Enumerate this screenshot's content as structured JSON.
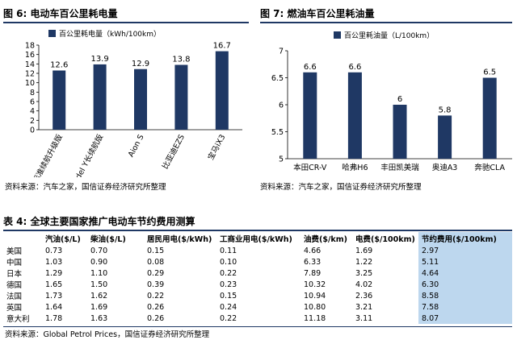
{
  "fig6": {
    "title": "图 6:  电动车百公里耗电量",
    "legend": "百公里耗电量（kWh/100km）",
    "source": "资料来源：汽车之家，国信证券经济研究所整理"
  },
  "fig7": {
    "title": "图 7:  燃油车百公里耗油量",
    "legend": "百公里耗油量（L/100km）",
    "source": "资料来源：汽车之家，国信证券经济研究所整理"
  },
  "table4": {
    "title": "表 4:  全球主要国家推广电动车节约费用测算",
    "headers": [
      "",
      "汽油($/L)",
      "柴油($/L)",
      "居民用电($/kWh)",
      "工商业用电($/kWh)",
      "油费($/km)",
      "电费($/100km)",
      "节约费用($/100km)"
    ],
    "rows": [
      [
        "美国",
        "0.73",
        "0.70",
        "0.15",
        "0.11",
        "4.66",
        "1.69",
        "2.97"
      ],
      [
        "中国",
        "1.03",
        "0.90",
        "0.08",
        "0.10",
        "6.33",
        "1.22",
        "5.11"
      ],
      [
        "日本",
        "1.29",
        "1.10",
        "0.29",
        "0.22",
        "7.89",
        "3.25",
        "4.64"
      ],
      [
        "德国",
        "1.65",
        "1.50",
        "0.39",
        "0.23",
        "10.32",
        "4.02",
        "6.30"
      ],
      [
        "法国",
        "1.73",
        "1.62",
        "0.22",
        "0.15",
        "10.94",
        "2.36",
        "8.58"
      ],
      [
        "英国",
        "1.64",
        "1.69",
        "0.26",
        "0.24",
        "10.80",
        "3.21",
        "7.58"
      ],
      [
        "意大利",
        "1.78",
        "1.63",
        "0.26",
        "0.22",
        "11.18",
        "3.11",
        "8.07"
      ]
    ],
    "source": "资料来源：Global Petrol Prices，国信证券经济研究所整理"
  },
  "colors": {
    "bar": "#1f3864",
    "highlight": "#bdd7ee",
    "rule": "#1f3864"
  },
  "chart_data": [
    {
      "type": "bar",
      "categories": [
        "Model 3标准续航升级版",
        "Model Y长续航版",
        "Aion S",
        "比亚迪EZS",
        "宝马iX3"
      ],
      "series": [
        {
          "name": "百公里耗电量（kWh/100km）",
          "values": [
            12.6,
            13.9,
            12.9,
            13.8,
            16.7
          ]
        }
      ],
      "yticks": [
        "0",
        "2",
        "4",
        "6",
        "8",
        "10",
        "12",
        "14",
        "16",
        "18"
      ],
      "ylim": [
        0,
        18
      ],
      "legend_position": "top-left",
      "grid": false
    },
    {
      "type": "bar",
      "categories": [
        "本田CR-V",
        "哈弗H6",
        "丰田凯美瑞",
        "奥迪A3",
        "奔驰CLA"
      ],
      "series": [
        {
          "name": "百公里耗油量（L/100km）",
          "values": [
            6.6,
            6.6,
            6.0,
            5.8,
            6.5
          ]
        }
      ],
      "yticks": [
        "5",
        "5.5",
        "6",
        "6.5",
        "7"
      ],
      "ylim": [
        5,
        7
      ],
      "legend_position": "top-left",
      "grid": false
    }
  ]
}
